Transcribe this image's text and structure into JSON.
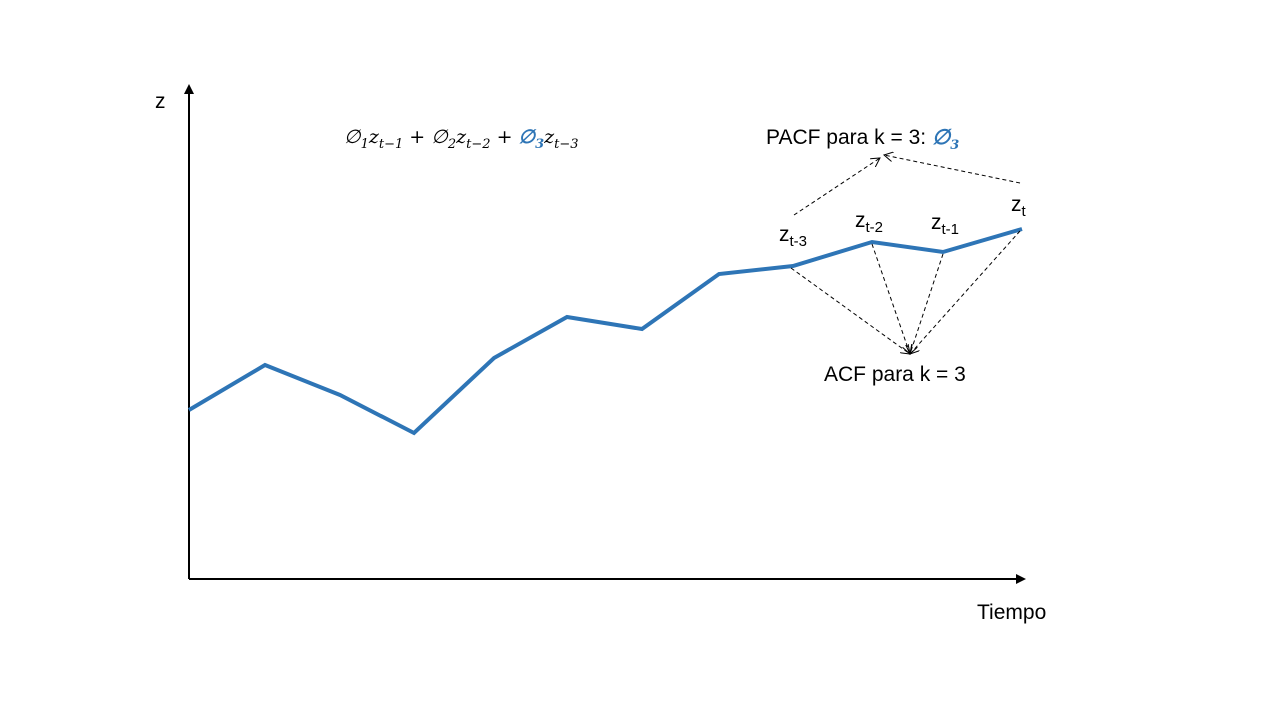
{
  "axes": {
    "y_label": "z",
    "x_label": "Tiempo"
  },
  "equation": {
    "phi": "∅",
    "z": "z",
    "plus": "+",
    "terms": [
      {
        "phi_sub": "1",
        "z_sub": "t−1"
      },
      {
        "phi_sub": "2",
        "z_sub": "t−2"
      },
      {
        "phi_sub": "3",
        "z_sub": "t−3"
      }
    ]
  },
  "annotations": {
    "pacf_text": "PACF para k = 3: ",
    "pacf_phi": "∅",
    "pacf_phi_sub": "3",
    "acf_text": "ACF para k = 3"
  },
  "point_labels": [
    {
      "base": "z",
      "sub": "t-3"
    },
    {
      "base": "z",
      "sub": "t-2"
    },
    {
      "base": "z",
      "sub": "t-1"
    },
    {
      "base": "z",
      "sub": "t"
    }
  ],
  "colors": {
    "series": "#2e75b6",
    "axis": "#000000",
    "dashed": "#000000"
  }
}
